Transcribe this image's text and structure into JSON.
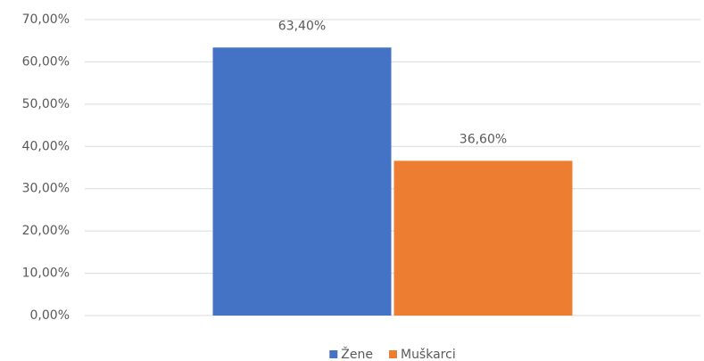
{
  "chart_data": {
    "type": "bar",
    "categories": [
      null
    ],
    "series": [
      {
        "name": "Žene",
        "color": "#4472c4",
        "values": [
          63.4
        ],
        "value_labels": [
          "63,40%"
        ]
      },
      {
        "name": "Muškarci",
        "color": "#ed7d31",
        "values": [
          36.6
        ],
        "value_labels": [
          "36,60%"
        ]
      }
    ],
    "ylim": [
      0,
      70
    ],
    "yticks": [
      {
        "value": 0,
        "label": "0,00%"
      },
      {
        "value": 10,
        "label": "10,00%"
      },
      {
        "value": 20,
        "label": "20,00%"
      },
      {
        "value": 30,
        "label": "30,00%"
      },
      {
        "value": 40,
        "label": "40,00%"
      },
      {
        "value": 50,
        "label": "50,00%"
      },
      {
        "value": 60,
        "label": "60,00%"
      },
      {
        "value": 70,
        "label": "70,00%"
      }
    ],
    "grid": true,
    "legend": "bottom"
  }
}
